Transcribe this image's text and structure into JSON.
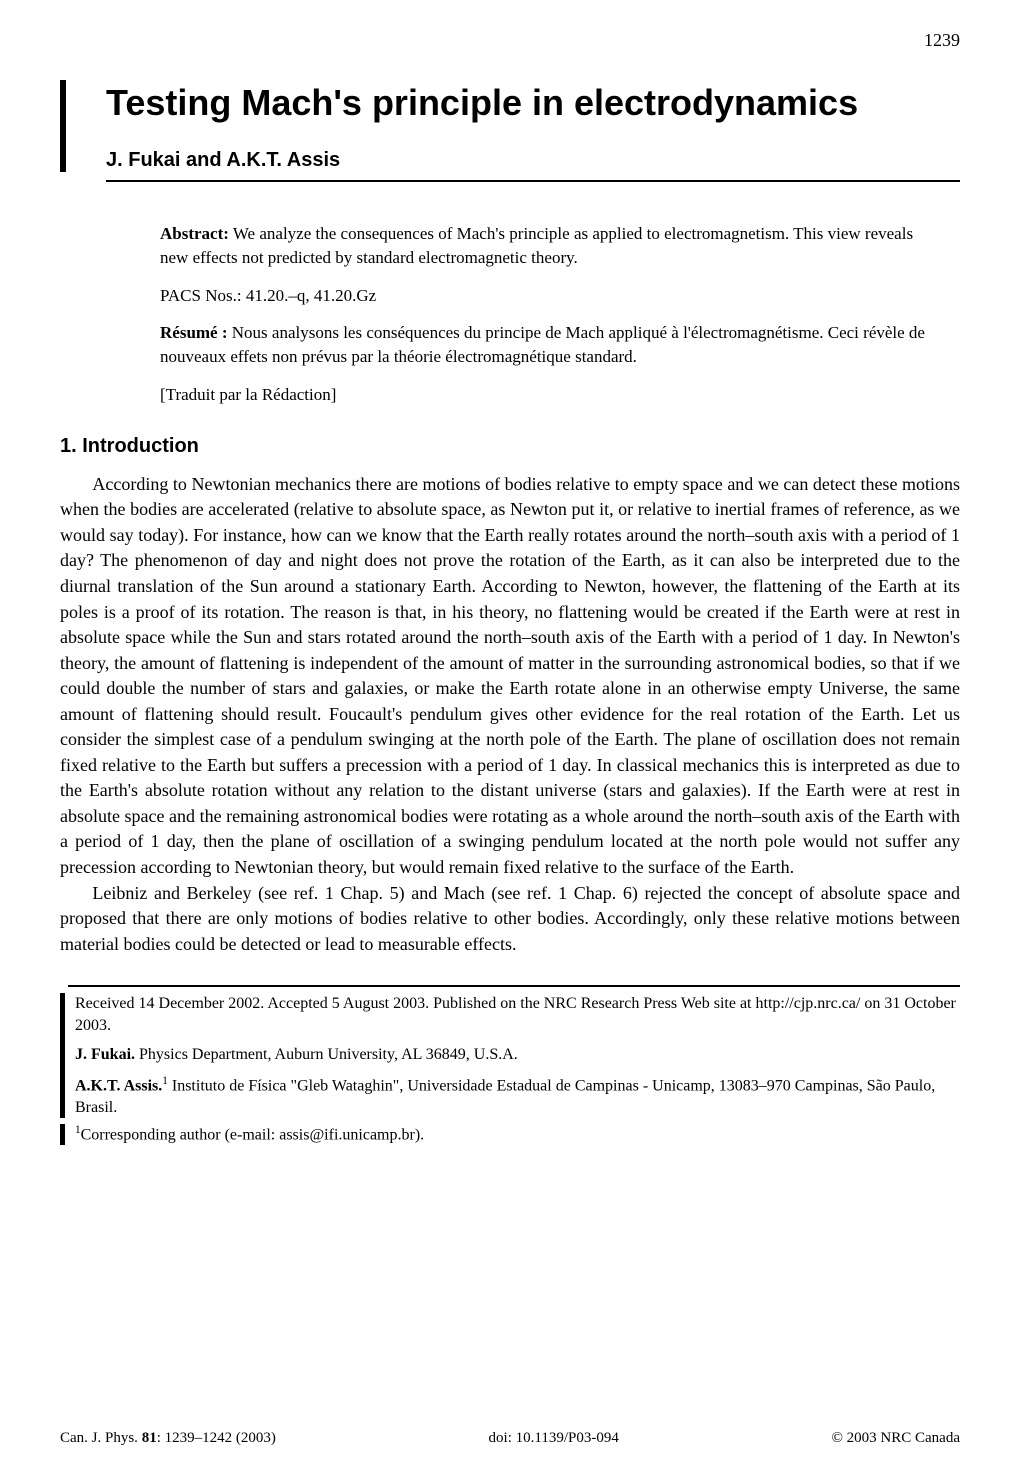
{
  "page_number": "1239",
  "title": "Testing Mach's principle in electrodynamics",
  "authors": "J. Fukai and A.K.T. Assis",
  "abstract": {
    "label": "Abstract:",
    "text": "We analyze the consequences of Mach's principle as applied to electromagnetism. This view reveals new effects not predicted by standard electromagnetic theory."
  },
  "pacs": "PACS Nos.: 41.20.–q, 41.20.Gz",
  "resume": {
    "label": "Résumé :",
    "text": "Nous analysons les conséquences du principe de Mach appliqué à l'électromagnétisme. Ceci révèle de nouveaux effets non prévus par la théorie électromagnétique standard."
  },
  "traduit": "[Traduit par la Rédaction]",
  "section1": {
    "heading": "1. Introduction",
    "para1": "According to Newtonian mechanics there are motions of bodies relative to empty space and we can detect these motions when the bodies are accelerated (relative to absolute space, as Newton put it, or relative to inertial frames of reference, as we would say today). For instance, how can we know that the Earth really rotates around the north–south axis with a period of 1 day? The phenomenon of day and night does not prove the rotation of the Earth, as it can also be interpreted due to the diurnal translation of the Sun around a stationary Earth. According to Newton, however, the flattening of the Earth at its poles is a proof of its rotation. The reason is that, in his theory, no flattening would be created if the Earth were at rest in absolute space while the Sun and stars rotated around the north–south axis of the Earth with a period of 1 day. In Newton's theory, the amount of flattening is independent of the amount of matter in the surrounding astronomical bodies, so that if we could double the number of stars and galaxies, or make the Earth rotate alone in an otherwise empty Universe, the same amount of flattening should result. Foucault's pendulum gives other evidence for the real rotation of the Earth. Let us consider the simplest case of a pendulum swinging at the north pole of the Earth. The plane of oscillation does not remain fixed relative to the Earth but suffers a precession with a period of 1 day. In classical mechanics this is interpreted as due to the Earth's absolute rotation without any relation to the distant universe (stars and galaxies). If the Earth were at rest in absolute space and the remaining astronomical bodies were rotating as a whole around the north–south axis of the Earth with a period of 1 day, then the plane of oscillation of a swinging pendulum located at the north pole would not suffer any precession according to Newtonian theory, but would remain fixed relative to the surface of the Earth.",
    "para2": "Leibniz and Berkeley (see ref. 1 Chap. 5) and Mach (see ref. 1 Chap. 6) rejected the concept of absolute space and proposed that there are only motions of bodies relative to other bodies. Accordingly, only these relative motions between material bodies could be detected or lead to measurable effects."
  },
  "footnotes": {
    "received": "Received 14 December 2002. Accepted 5 August 2003. Published on the NRC Research Press Web site at http://cjp.nrc.ca/ on 31 October 2003.",
    "fukai_name": "J. Fukai.",
    "fukai_affil": " Physics Department, Auburn University, AL 36849, U.S.A.",
    "assis_name": "A.K.T. Assis.",
    "assis_sup": "1",
    "assis_affil": " Instituto de Física \"Gleb Wataghin\", Universidade Estadual de Campinas - Unicamp, 13083–970 Campinas, São Paulo, Brasil.",
    "corr_sup": "1",
    "corr": "Corresponding author (e-mail: assis@ifi.unicamp.br)."
  },
  "footer": {
    "left_prefix": "Can. J. Phys. ",
    "left_bold": "81",
    "left_suffix": ": 1239–1242 (2003)",
    "center": "doi: 10.1139/P03-094",
    "right": "© 2003 NRC Canada"
  }
}
